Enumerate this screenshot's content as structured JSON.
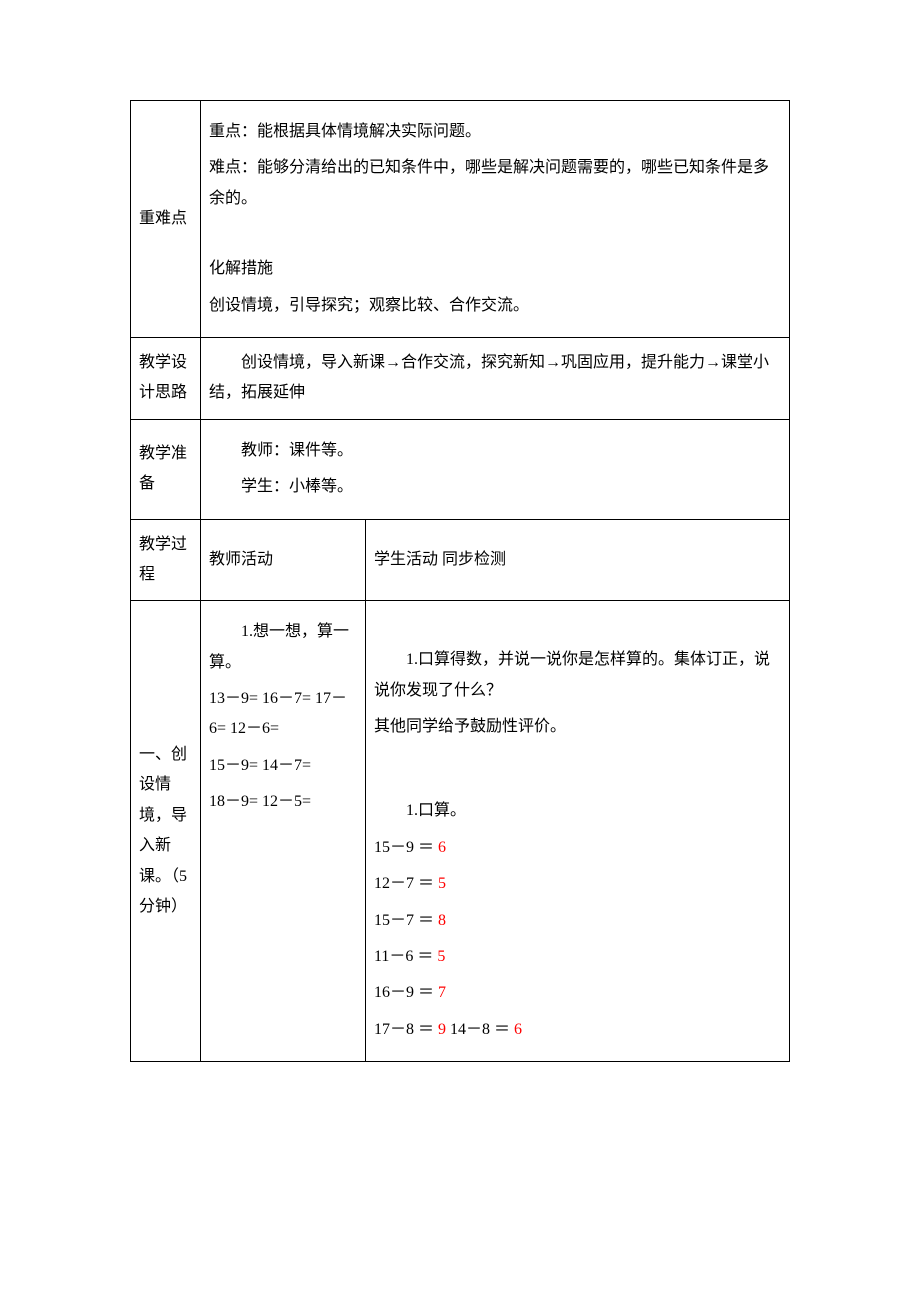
{
  "rows": {
    "difficulty": {
      "label": "重难点",
      "p1": "重点：能根据具体情境解决实际问题。",
      "p2": "难点：能够分清给出的已知条件中，哪些是解决问题需要的，哪些已知条件是多余的。",
      "p3": "化解措施",
      "p4": "创设情境，引导探究；观察比较、合作交流。"
    },
    "design": {
      "label": "教学设计思路",
      "text": "创设情境，导入新课→合作交流，探究新知→巩固应用，提升能力→课堂小结，拓展延伸"
    },
    "prep": {
      "label": "教学准备",
      "p1": "教师：课件等。",
      "p2": "学生：小棒等。"
    },
    "process": {
      "label": "教学过程",
      "teacher_header": "教师活动",
      "student_header": "学生活动  同步检测"
    },
    "section1": {
      "label": "一、创设情境，导入新课。（5分钟）",
      "teacher_p1": "1.想一想，算一算。",
      "teacher_exprs": [
        "13－9= 16－7= 17－6= 12－6=",
        "15－9= 14－7=",
        " 18－9= 12－5="
      ],
      "student_p1": "1.口算得数，并说一说你是怎样算的。集体订正，说说你发现了什么？",
      "student_p2": "其他同学给予鼓励性评价。",
      "student_p3": "1.口算。",
      "calc": [
        {
          "expr": "15－9 ＝ ",
          "ans": "6"
        },
        {
          "expr": "12－7 ＝ ",
          "ans": "5"
        },
        {
          "expr": "15－7 ＝ ",
          "ans": "8"
        },
        {
          "expr": "11－6 ＝ ",
          "ans": "5"
        },
        {
          "expr": "16－9 ＝ ",
          "ans": "7"
        }
      ],
      "calc_last": [
        {
          "expr": "17－8 ＝ ",
          "ans": "9"
        },
        {
          "expr": " 14－8 ＝ ",
          "ans": "6"
        }
      ]
    }
  }
}
